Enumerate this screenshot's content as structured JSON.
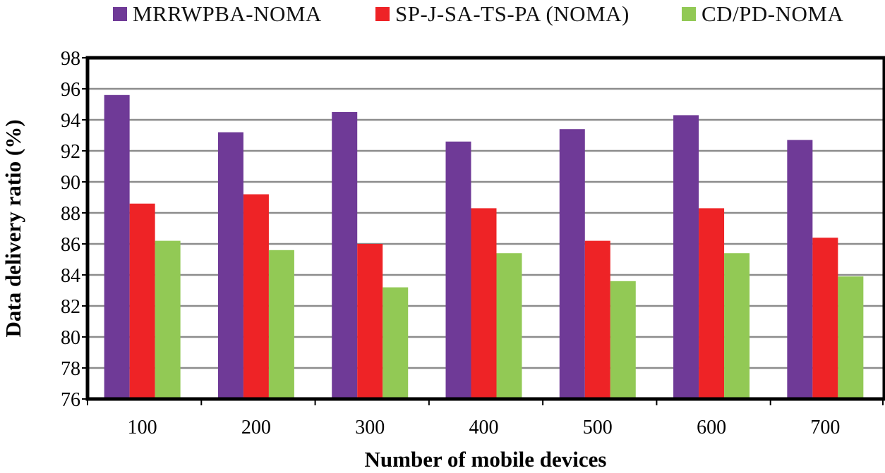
{
  "chart_data": {
    "type": "bar",
    "title": "",
    "xlabel": "Number of mobile devices",
    "ylabel": "Data delivery ratio (%)",
    "ylim": [
      76,
      98
    ],
    "ytick_step": 2,
    "grid": true,
    "legend_position": "top",
    "categories": [
      "100",
      "200",
      "300",
      "400",
      "500",
      "600",
      "700"
    ],
    "series": [
      {
        "name": "MRRWPBA-NOMA",
        "color": "#6F3A97",
        "values": [
          95.6,
          93.2,
          94.5,
          92.6,
          93.4,
          94.3,
          92.7
        ]
      },
      {
        "name": "SP-J-SA-TS-PA (NOMA)",
        "color": "#EE2326",
        "values": [
          88.6,
          89.2,
          86.0,
          88.3,
          86.2,
          88.3,
          86.4
        ]
      },
      {
        "name": "CD/PD-NOMA",
        "color": "#92C955",
        "values": [
          86.2,
          85.6,
          83.2,
          85.4,
          83.6,
          85.4,
          83.9
        ]
      }
    ]
  }
}
